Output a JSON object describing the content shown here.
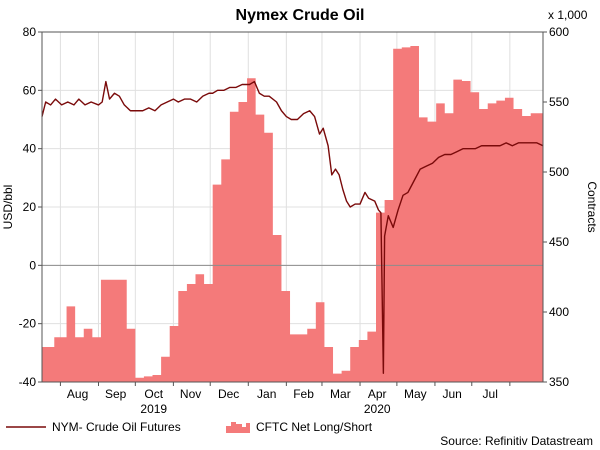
{
  "chart_data": {
    "type": "line",
    "title": "Nymex Crude Oil",
    "subtitle": "",
    "left_axis": {
      "label": "USD/bbl",
      "ylim": [
        -40,
        80
      ],
      "ticks": [
        -40,
        -20,
        0,
        20,
        40,
        60,
        80
      ]
    },
    "right_axis": {
      "label": "Contracts",
      "unit_note": "x 1,000",
      "ylim": [
        350,
        600
      ],
      "ticks": [
        350,
        400,
        450,
        500,
        550,
        600
      ]
    },
    "x_axis": {
      "range": [
        "2019-07-17",
        "2020-08-28"
      ],
      "month_ticks": [
        "2019-08-01",
        "2019-09-01",
        "2019-10-01",
        "2019-11-01",
        "2019-12-01",
        "2020-01-01",
        "2020-02-01",
        "2020-03-01",
        "2020-04-01",
        "2020-05-01",
        "2020-06-01",
        "2020-07-01",
        "2020-08-01"
      ],
      "month_labels": [
        {
          "date": "2019-08-15",
          "label": "Aug"
        },
        {
          "date": "2019-09-15",
          "label": "Sep"
        },
        {
          "date": "2019-10-16",
          "label": "Oct"
        },
        {
          "date": "2019-11-15",
          "label": "Nov"
        },
        {
          "date": "2019-12-16",
          "label": "Dec"
        },
        {
          "date": "2020-01-16",
          "label": "Jan"
        },
        {
          "date": "2020-02-15",
          "label": "Feb"
        },
        {
          "date": "2020-03-16",
          "label": "Mar"
        },
        {
          "date": "2020-04-15",
          "label": "Apr"
        },
        {
          "date": "2020-05-16",
          "label": "May"
        },
        {
          "date": "2020-06-15",
          "label": "Jun"
        },
        {
          "date": "2020-07-16",
          "label": "Jul"
        }
      ],
      "year_labels": [
        {
          "date": "2019-10-16",
          "label": "2019"
        },
        {
          "date": "2020-04-15",
          "label": "2020"
        }
      ],
      "zero_line": 0
    },
    "grid": true,
    "legend": "bottom-left",
    "series": [
      {
        "name": "NYM- Crude Oil Futures",
        "kind": "line",
        "axis": "left",
        "color": "#7a0a0a",
        "points": [
          [
            "2019-07-17",
            51
          ],
          [
            "2019-07-20",
            56
          ],
          [
            "2019-07-24",
            55
          ],
          [
            "2019-07-28",
            57
          ],
          [
            "2019-08-02",
            55
          ],
          [
            "2019-08-07",
            56
          ],
          [
            "2019-08-12",
            55
          ],
          [
            "2019-08-16",
            57
          ],
          [
            "2019-08-21",
            55
          ],
          [
            "2019-08-26",
            56
          ],
          [
            "2019-09-01",
            55
          ],
          [
            "2019-09-04",
            56
          ],
          [
            "2019-09-07",
            63
          ],
          [
            "2019-09-10",
            57
          ],
          [
            "2019-09-14",
            59
          ],
          [
            "2019-09-18",
            58
          ],
          [
            "2019-09-22",
            55
          ],
          [
            "2019-09-27",
            53
          ],
          [
            "2019-10-01",
            53
          ],
          [
            "2019-10-07",
            53
          ],
          [
            "2019-10-12",
            54
          ],
          [
            "2019-10-17",
            53
          ],
          [
            "2019-10-22",
            55
          ],
          [
            "2019-10-27",
            56
          ],
          [
            "2019-11-01",
            57
          ],
          [
            "2019-11-05",
            56
          ],
          [
            "2019-11-10",
            57
          ],
          [
            "2019-11-15",
            57
          ],
          [
            "2019-11-20",
            56
          ],
          [
            "2019-11-25",
            58
          ],
          [
            "2019-11-30",
            59
          ],
          [
            "2019-12-03",
            59
          ],
          [
            "2019-12-07",
            60
          ],
          [
            "2019-12-12",
            60
          ],
          [
            "2019-12-17",
            61
          ],
          [
            "2019-12-22",
            61
          ],
          [
            "2019-12-27",
            62
          ],
          [
            "2020-01-02",
            62
          ],
          [
            "2020-01-06",
            63
          ],
          [
            "2020-01-10",
            59
          ],
          [
            "2020-01-14",
            58
          ],
          [
            "2020-01-18",
            58
          ],
          [
            "2020-01-24",
            56
          ],
          [
            "2020-01-28",
            53
          ],
          [
            "2020-02-01",
            51
          ],
          [
            "2020-02-05",
            50
          ],
          [
            "2020-02-10",
            50
          ],
          [
            "2020-02-15",
            52
          ],
          [
            "2020-02-20",
            53
          ],
          [
            "2020-02-24",
            51
          ],
          [
            "2020-02-28",
            45
          ],
          [
            "2020-03-02",
            47
          ],
          [
            "2020-03-06",
            41
          ],
          [
            "2020-03-09",
            31
          ],
          [
            "2020-03-12",
            33
          ],
          [
            "2020-03-15",
            31
          ],
          [
            "2020-03-18",
            26
          ],
          [
            "2020-03-21",
            22
          ],
          [
            "2020-03-24",
            20
          ],
          [
            "2020-03-28",
            21
          ],
          [
            "2020-04-01",
            21
          ],
          [
            "2020-04-05",
            25
          ],
          [
            "2020-04-08",
            23
          ],
          [
            "2020-04-13",
            22
          ],
          [
            "2020-04-16",
            19
          ],
          [
            "2020-04-18",
            18
          ],
          [
            "2020-04-20",
            -37
          ],
          [
            "2020-04-21",
            10
          ],
          [
            "2020-04-24",
            17
          ],
          [
            "2020-04-28",
            13
          ],
          [
            "2020-05-02",
            19
          ],
          [
            "2020-05-06",
            24
          ],
          [
            "2020-05-10",
            25
          ],
          [
            "2020-05-15",
            29
          ],
          [
            "2020-05-20",
            33
          ],
          [
            "2020-05-25",
            34
          ],
          [
            "2020-05-30",
            35
          ],
          [
            "2020-06-04",
            37
          ],
          [
            "2020-06-09",
            38
          ],
          [
            "2020-06-14",
            38
          ],
          [
            "2020-06-19",
            39
          ],
          [
            "2020-06-24",
            40
          ],
          [
            "2020-06-29",
            40
          ],
          [
            "2020-07-04",
            40
          ],
          [
            "2020-07-09",
            41
          ],
          [
            "2020-07-14",
            41
          ],
          [
            "2020-07-19",
            41
          ],
          [
            "2020-07-24",
            41
          ],
          [
            "2020-07-29",
            42
          ],
          [
            "2020-08-03",
            41
          ],
          [
            "2020-08-08",
            42
          ],
          [
            "2020-08-13",
            42
          ],
          [
            "2020-08-18",
            42
          ],
          [
            "2020-08-23",
            42
          ],
          [
            "2020-08-28",
            41
          ]
        ]
      },
      {
        "name": "CFTC Net Long/Short",
        "kind": "area-step",
        "axis": "right",
        "color": "#f47a7a",
        "points": [
          [
            "2019-07-17",
            375
          ],
          [
            "2019-07-23",
            375
          ],
          [
            "2019-07-27",
            382
          ],
          [
            "2019-08-02",
            382
          ],
          [
            "2019-08-06",
            404
          ],
          [
            "2019-08-13",
            382
          ],
          [
            "2019-08-20",
            388
          ],
          [
            "2019-08-27",
            382
          ],
          [
            "2019-09-03",
            423
          ],
          [
            "2019-09-10",
            423
          ],
          [
            "2019-09-17",
            423
          ],
          [
            "2019-09-24",
            388
          ],
          [
            "2019-10-01",
            353
          ],
          [
            "2019-10-08",
            354
          ],
          [
            "2019-10-15",
            355
          ],
          [
            "2019-10-22",
            368
          ],
          [
            "2019-10-29",
            390
          ],
          [
            "2019-11-05",
            415
          ],
          [
            "2019-11-12",
            420
          ],
          [
            "2019-11-19",
            427
          ],
          [
            "2019-11-26",
            420
          ],
          [
            "2019-12-03",
            491
          ],
          [
            "2019-12-10",
            509
          ],
          [
            "2019-12-17",
            543
          ],
          [
            "2019-12-24",
            550
          ],
          [
            "2019-12-31",
            567
          ],
          [
            "2020-01-07",
            541
          ],
          [
            "2020-01-14",
            528
          ],
          [
            "2020-01-21",
            455
          ],
          [
            "2020-01-28",
            415
          ],
          [
            "2020-02-04",
            384
          ],
          [
            "2020-02-11",
            384
          ],
          [
            "2020-02-18",
            388
          ],
          [
            "2020-02-25",
            407
          ],
          [
            "2020-03-03",
            375
          ],
          [
            "2020-03-10",
            356
          ],
          [
            "2020-03-17",
            358
          ],
          [
            "2020-03-24",
            375
          ],
          [
            "2020-03-31",
            380
          ],
          [
            "2020-04-07",
            386
          ],
          [
            "2020-04-14",
            471
          ],
          [
            "2020-04-21",
            480
          ],
          [
            "2020-04-28",
            588
          ],
          [
            "2020-05-05",
            589
          ],
          [
            "2020-05-12",
            590
          ],
          [
            "2020-05-19",
            539
          ],
          [
            "2020-05-26",
            536
          ],
          [
            "2020-06-02",
            549
          ],
          [
            "2020-06-09",
            542
          ],
          [
            "2020-06-16",
            566
          ],
          [
            "2020-06-23",
            565
          ],
          [
            "2020-06-30",
            557
          ],
          [
            "2020-07-07",
            545
          ],
          [
            "2020-07-14",
            549
          ],
          [
            "2020-07-21",
            551
          ],
          [
            "2020-07-28",
            553
          ],
          [
            "2020-08-04",
            545
          ],
          [
            "2020-08-11",
            540
          ],
          [
            "2020-08-18",
            542
          ],
          [
            "2020-08-28",
            542
          ]
        ]
      }
    ],
    "source": "Source: Refinitiv Datastream"
  }
}
